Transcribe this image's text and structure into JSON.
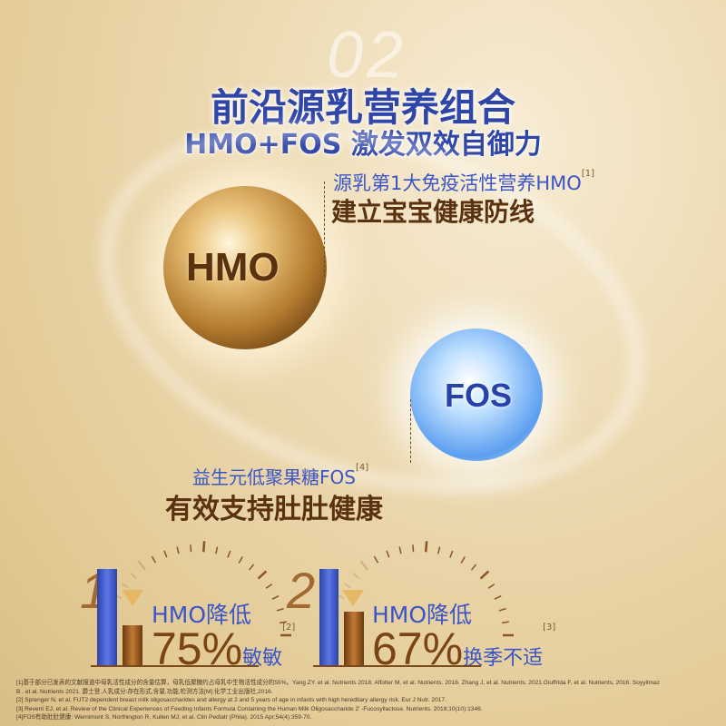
{
  "section_number": "02",
  "title": "前沿源乳营养组合",
  "subtitle": "HMO+FOS 激发双效自御力",
  "hmo": {
    "ball_label": "HMO",
    "desc": "源乳第1大免疫活性营养HMO",
    "ref": "[1]",
    "headline": "建立宝宝健康防线"
  },
  "fos": {
    "ball_label": "FOS",
    "desc": "益生元低聚果糖FOS",
    "ref": "[4]",
    "headline": "有效支持肚肚健康"
  },
  "stats": [
    {
      "index": "1",
      "label": "HMO降低",
      "value": "75%",
      "condition": "敏敏",
      "ref": "[2]",
      "reduction_percent": 75
    },
    {
      "index": "2",
      "label": "HMO降低",
      "value": "67%",
      "condition": "换季不适",
      "ref": "[3]",
      "reduction_percent": 67
    }
  ],
  "footnotes": [
    "[1]基于部分已发表的文献报道中母乳活性成分的含量估算，母乳低聚糖约占母乳中生物活性成分的55%。Yang ZY. et al. Nutrients 2018. Affolter M, et al. Nutrients. 2016. Zhang J, et al. Nutrients. 2021.Giuffrida F, et al. Nutrients, 2016. Soyyilmaz",
    "B . et al. Nutrients 2021. 爵士登.人乳成分:存在形式,含量,功能,检测方法[M].化学工业出版社,2016.",
    "[2] Sprenger N, et al. FUT2   dependent breast milk oligosaccharides and allergy at 2 and 5 years of age in infants with high hereditary allergy risk. Eur J Nutr. 2017.",
    "[3] Reverri EJ, et al. Review of the Clinical Experiences of Feeding Infants Formula Containing the Human Milk Oligosaccharide 2'  -Fucosyllactose. Nutrients. 2018;10(10):1346.",
    "[4]FOS有助肚肚健康: Wernimont S, Northington R, Kullen MJ, et al. Clin Pediatr (Phila). 2015 Apr;54(4):359-70."
  ],
  "colors": {
    "blue": "#2f45a8",
    "brown": "#5a3210",
    "gold_bg": "#e2c994"
  }
}
